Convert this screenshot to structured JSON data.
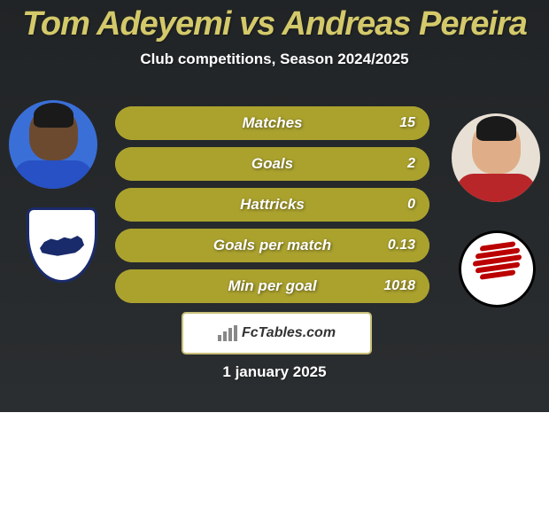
{
  "colors": {
    "bg_gradient_top": "#212426",
    "bg_gradient_bottom": "#2b2e30",
    "title_color": "#d4c96a",
    "subtitle_color": "#ffffff",
    "row_base": "#aba22e",
    "row_fill": "#d0c748",
    "row_label_color": "#ffffff",
    "row_value_color": "#ffffff",
    "brand_bg": "#ffffff",
    "brand_border": "#c9c07a",
    "brand_text": "#333333",
    "brand_icon": "#888888",
    "date_color": "#ffffff",
    "player1_bg": "#3a6fd8",
    "player1_skin": "#6b4a2f",
    "player1_shirt": "#2751c4",
    "player2_bg": "#e8e0d5",
    "player2_skin": "#dfae88",
    "player2_shirt": "#b8262a"
  },
  "typography": {
    "title_size": 38,
    "subtitle_size": 17,
    "stat_label_size": 17,
    "stat_value_size": 16,
    "date_size": 17
  },
  "title": "Tom Adeyemi vs Andreas Pereira",
  "subtitle": "Club competitions, Season 2024/2025",
  "date": "1 january 2025",
  "brand": "FcTables.com",
  "stats": [
    {
      "label": "Matches",
      "right_value": "15",
      "left_pct": 6,
      "right_pct": 94
    },
    {
      "label": "Goals",
      "right_value": "2",
      "left_pct": 6,
      "right_pct": 94
    },
    {
      "label": "Hattricks",
      "right_value": "0",
      "left_pct": 6,
      "right_pct": 94
    },
    {
      "label": "Goals per match",
      "right_value": "0.13",
      "left_pct": 6,
      "right_pct": 94
    },
    {
      "label": "Min per goal",
      "right_value": "1018",
      "left_pct": 6,
      "right_pct": 94
    }
  ]
}
